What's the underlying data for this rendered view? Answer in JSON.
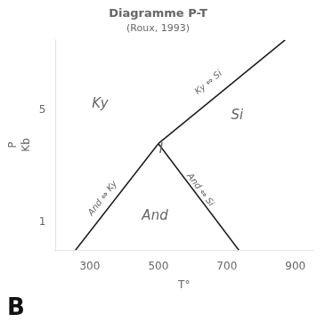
{
  "chart_data": {
    "type": "line",
    "title": "Diagramme P-T",
    "subtitle": "(Roux, 1993)",
    "xlabel": "T°",
    "ylabel": [
      "P",
      "Kb"
    ],
    "panel_label": "B",
    "series": [
      {
        "x": [
          500,
          870
        ],
        "values": [
          3.8,
          7.5
        ],
        "color": "#1a1a1a"
      },
      {
        "x": [
          258,
          500
        ],
        "values": [
          0,
          3.8
        ],
        "color": "#1a1a1a"
      },
      {
        "x": [
          500,
          735
        ],
        "values": [
          3.8,
          0
        ],
        "color": "#1a1a1a"
      }
    ],
    "xlim": [
      200,
      950
    ],
    "xticks": [
      300,
      500,
      700,
      900
    ],
    "ylim": [
      0,
      7.5
    ],
    "yticks": [
      1,
      5
    ],
    "grid": false,
    "annotations": [
      {
        "text": "Ky",
        "x": 330,
        "y": 5.2
      },
      {
        "text": "Si",
        "x": 730,
        "y": 4.8
      },
      {
        "text": "And",
        "x": 490,
        "y": 1.2
      },
      {
        "text": "I",
        "x": 508,
        "y": 3.6
      }
    ],
    "line_labels": [
      {
        "text": "Ky ⇔ Si",
        "x": 655,
        "y": 5.85
      },
      {
        "text": "And ⇔ Ky",
        "x": 348,
        "y": 1.75
      },
      {
        "text": "And ⇔ Si",
        "x": 612,
        "y": 2.05
      }
    ]
  }
}
